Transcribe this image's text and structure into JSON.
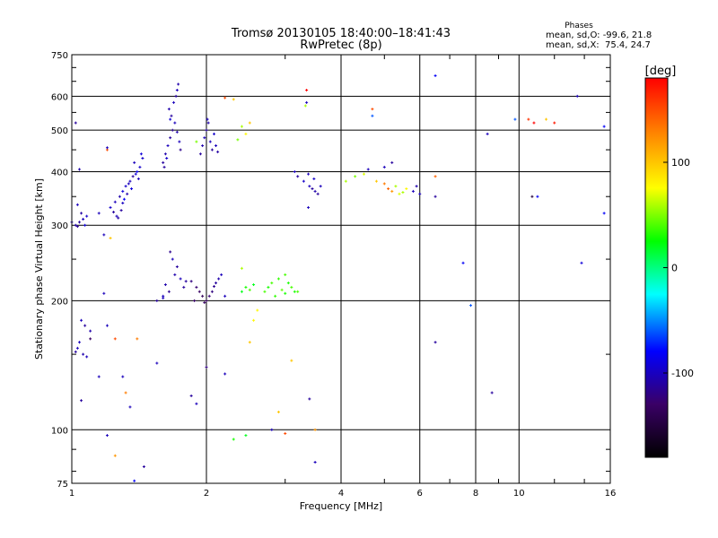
{
  "chart_data": {
    "type": "scatter",
    "title": "Tromsø 20130105 18:40:00–18:41:43",
    "subtitle": "RwPretec (8p)",
    "xlabel": "Frequency [MHz]",
    "ylabel": "Stationary phase Virtual Height [km]",
    "x_scale": "log",
    "y_scale": "log",
    "xlim": [
      1,
      16
    ],
    "ylim": [
      75,
      750
    ],
    "x_ticks": [
      1,
      2,
      4,
      6,
      8,
      10,
      16
    ],
    "x_tick_labels": [
      "1",
      "2",
      "4",
      "6",
      "8",
      "10",
      "16"
    ],
    "y_ticks": [
      75,
      100,
      200,
      300,
      400,
      500,
      600,
      750
    ],
    "y_tick_labels": [
      "75",
      "100",
      "200",
      "300",
      "400",
      "500",
      "600",
      "750"
    ],
    "grid": true,
    "stats": {
      "heading": "Phases",
      "line_o": "mean, sd,O: -99.6, 21.8",
      "line_x": "mean, sd,X:  75.4, 24.7"
    },
    "colorbar": {
      "label": "[deg]",
      "min": -180,
      "max": 180,
      "ticks": [
        100,
        0,
        -100
      ],
      "tick_labels": [
        "100",
        "0",
        "-100"
      ],
      "colormap": [
        "#000000",
        "#3a0066",
        "#0000ff",
        "#00ffff",
        "#00ff00",
        "#ffff00",
        "#ff8000",
        "#ff0000"
      ]
    },
    "points_description_fields": [
      "frequency_mhz",
      "height_km",
      "phase_deg"
    ],
    "points": [
      [
        1.02,
        300,
        -105
      ],
      [
        1.04,
        305,
        -110
      ],
      [
        1.06,
        310,
        -100
      ],
      [
        1.08,
        315,
        -95
      ],
      [
        1.05,
        320,
        -108
      ],
      [
        1.03,
        298,
        -112
      ],
      [
        1.0,
        305,
        -100
      ],
      [
        1.07,
        300,
        -90
      ],
      [
        1.02,
        520,
        -110
      ],
      [
        1.04,
        405,
        -105
      ],
      [
        1.03,
        335,
        -100
      ],
      [
        1.22,
        330,
        -95
      ],
      [
        1.25,
        340,
        -100
      ],
      [
        1.28,
        350,
        -105
      ],
      [
        1.3,
        360,
        -90
      ],
      [
        1.32,
        370,
        -95
      ],
      [
        1.35,
        380,
        -100
      ],
      [
        1.37,
        390,
        -110
      ],
      [
        1.4,
        400,
        -85
      ],
      [
        1.42,
        410,
        -95
      ],
      [
        1.38,
        420,
        -100
      ],
      [
        1.33,
        355,
        -105
      ],
      [
        1.29,
        325,
        -110
      ],
      [
        1.26,
        315,
        -100
      ],
      [
        1.31,
        345,
        -80
      ],
      [
        1.36,
        365,
        -90
      ],
      [
        1.41,
        385,
        -100
      ],
      [
        1.44,
        430,
        -95
      ],
      [
        1.27,
        312,
        -108
      ],
      [
        1.34,
        375,
        -100
      ],
      [
        1.39,
        395,
        -92
      ],
      [
        1.24,
        322,
        -110
      ],
      [
        1.3,
        338,
        -98
      ],
      [
        1.43,
        440,
        -90
      ],
      [
        1.2,
        450,
        150
      ],
      [
        1.2,
        455,
        -100
      ],
      [
        1.15,
        320,
        -100
      ],
      [
        1.18,
        285,
        -100
      ],
      [
        1.22,
        280,
        100
      ],
      [
        1.6,
        420,
        -110
      ],
      [
        1.62,
        440,
        -105
      ],
      [
        1.64,
        460,
        -100
      ],
      [
        1.66,
        480,
        -110
      ],
      [
        1.68,
        500,
        -115
      ],
      [
        1.7,
        520,
        -100
      ],
      [
        1.67,
        540,
        -110
      ],
      [
        1.65,
        560,
        -105
      ],
      [
        1.69,
        580,
        -100
      ],
      [
        1.71,
        600,
        -110
      ],
      [
        1.72,
        620,
        -100
      ],
      [
        1.73,
        640,
        -105
      ],
      [
        1.63,
        430,
        -95
      ],
      [
        1.61,
        410,
        -110
      ],
      [
        1.74,
        470,
        -100
      ],
      [
        1.75,
        450,
        -115
      ],
      [
        1.66,
        530,
        -90
      ],
      [
        1.72,
        495,
        -105
      ],
      [
        1.94,
        440,
        -110
      ],
      [
        1.96,
        460,
        -105
      ],
      [
        1.98,
        480,
        -100
      ],
      [
        2.0,
        500,
        -110
      ],
      [
        2.02,
        520,
        -105
      ],
      [
        2.04,
        470,
        -100
      ],
      [
        2.06,
        450,
        -110
      ],
      [
        2.08,
        490,
        -95
      ],
      [
        2.1,
        460,
        -100
      ],
      [
        2.12,
        445,
        -108
      ],
      [
        2.01,
        530,
        -100
      ],
      [
        1.9,
        470,
        50
      ],
      [
        1.55,
        200,
        -110
      ],
      [
        1.6,
        205,
        -100
      ],
      [
        1.65,
        210,
        -115
      ],
      [
        1.7,
        230,
        -105
      ],
      [
        1.72,
        240,
        -110
      ],
      [
        1.68,
        250,
        -100
      ],
      [
        1.66,
        260,
        -115
      ],
      [
        1.75,
        225,
        -100
      ],
      [
        1.8,
        222,
        -110
      ],
      [
        1.85,
        222,
        -120
      ],
      [
        1.9,
        215,
        -125
      ],
      [
        1.93,
        210,
        -130
      ],
      [
        1.96,
        205,
        -135
      ],
      [
        2.0,
        200,
        -130
      ],
      [
        2.03,
        205,
        -125
      ],
      [
        2.06,
        210,
        -120
      ],
      [
        2.1,
        220,
        -110
      ],
      [
        2.13,
        225,
        -105
      ],
      [
        2.16,
        230,
        -100
      ],
      [
        1.88,
        200,
        -128
      ],
      [
        1.98,
        198,
        -132
      ],
      [
        2.08,
        216,
        -115
      ],
      [
        1.78,
        215,
        -110
      ],
      [
        1.62,
        218,
        -105
      ],
      [
        2.4,
        210,
        20
      ],
      [
        2.45,
        215,
        30
      ],
      [
        2.5,
        212,
        40
      ],
      [
        2.55,
        218,
        20
      ],
      [
        2.4,
        238,
        60
      ],
      [
        2.7,
        210,
        40
      ],
      [
        2.75,
        215,
        30
      ],
      [
        2.8,
        220,
        40
      ],
      [
        2.9,
        225,
        35
      ],
      [
        3.0,
        230,
        40
      ],
      [
        3.05,
        220,
        30
      ],
      [
        3.1,
        215,
        40
      ],
      [
        3.15,
        210,
        30
      ],
      [
        2.95,
        212,
        45
      ],
      [
        3.2,
        210,
        40
      ],
      [
        2.85,
        205,
        35
      ],
      [
        3.0,
        208,
        30
      ],
      [
        2.4,
        510,
        60
      ],
      [
        2.45,
        490,
        80
      ],
      [
        2.35,
        475,
        50
      ],
      [
        2.3,
        590,
        100
      ],
      [
        2.5,
        520,
        100
      ],
      [
        2.2,
        595,
        150
      ],
      [
        3.15,
        400,
        -100
      ],
      [
        3.2,
        390,
        -110
      ],
      [
        3.3,
        380,
        -95
      ],
      [
        3.4,
        370,
        -100
      ],
      [
        3.45,
        365,
        -110
      ],
      [
        3.5,
        360,
        -105
      ],
      [
        3.55,
        355,
        -110
      ],
      [
        3.6,
        370,
        -100
      ],
      [
        3.48,
        385,
        -95
      ],
      [
        3.38,
        395,
        -100
      ],
      [
        4.1,
        380,
        60
      ],
      [
        4.3,
        390,
        50
      ],
      [
        4.5,
        395,
        70
      ],
      [
        4.8,
        380,
        100
      ],
      [
        5.0,
        375,
        130
      ],
      [
        5.1,
        365,
        140
      ],
      [
        5.2,
        360,
        120
      ],
      [
        5.4,
        355,
        70
      ],
      [
        5.5,
        358,
        60
      ],
      [
        5.6,
        365,
        80
      ],
      [
        5.3,
        370,
        60
      ],
      [
        4.6,
        405,
        -100
      ],
      [
        5.0,
        410,
        -100
      ],
      [
        5.2,
        420,
        -110
      ],
      [
        5.8,
        360,
        -100
      ],
      [
        5.9,
        370,
        -105
      ],
      [
        6.0,
        355,
        -100
      ],
      [
        4.7,
        560,
        150
      ],
      [
        4.7,
        540,
        -60
      ],
      [
        3.35,
        620,
        180
      ],
      [
        3.35,
        580,
        -100
      ],
      [
        3.33,
        570,
        60
      ],
      [
        6.5,
        670,
        -80
      ],
      [
        6.5,
        390,
        140
      ],
      [
        6.5,
        350,
        -110
      ],
      [
        6.5,
        160,
        -110
      ],
      [
        7.5,
        245,
        -80
      ],
      [
        7.8,
        195,
        -60
      ],
      [
        8.5,
        490,
        -100
      ],
      [
        8.7,
        122,
        -110
      ],
      [
        9.8,
        530,
        -60
      ],
      [
        10.5,
        530,
        160
      ],
      [
        10.8,
        520,
        180
      ],
      [
        11.5,
        530,
        100
      ],
      [
        12.0,
        520,
        170
      ],
      [
        10.7,
        350,
        -150
      ],
      [
        11.0,
        350,
        -80
      ],
      [
        13.5,
        600,
        -100
      ],
      [
        13.8,
        245,
        -90
      ],
      [
        15.5,
        320,
        -80
      ],
      [
        15.5,
        510,
        -80
      ],
      [
        2.2,
        205,
        -100
      ],
      [
        1.05,
        180,
        -100
      ],
      [
        1.07,
        175,
        -110
      ],
      [
        1.04,
        160,
        -100
      ],
      [
        1.06,
        150,
        -105
      ],
      [
        1.08,
        148,
        -100
      ],
      [
        1.02,
        152,
        -110
      ],
      [
        1.1,
        170,
        -105
      ],
      [
        1.03,
        155,
        -100
      ],
      [
        1.2,
        175,
        -100
      ],
      [
        1.25,
        163,
        150
      ],
      [
        1.3,
        133,
        -100
      ],
      [
        1.32,
        122,
        130
      ],
      [
        1.35,
        113,
        -100
      ],
      [
        1.4,
        163,
        130
      ],
      [
        1.05,
        117,
        -110
      ],
      [
        1.1,
        163,
        -130
      ],
      [
        1.15,
        133,
        -100
      ],
      [
        1.18,
        208,
        -100
      ],
      [
        1.2,
        97,
        -100
      ],
      [
        1.25,
        87,
        120
      ],
      [
        1.38,
        76,
        -80
      ],
      [
        1.45,
        82,
        -110
      ],
      [
        1.55,
        143,
        -100
      ],
      [
        1.6,
        203,
        -100
      ],
      [
        1.85,
        120,
        -110
      ],
      [
        1.9,
        115,
        -100
      ],
      [
        2.0,
        140,
        -120
      ],
      [
        2.2,
        135,
        -100
      ],
      [
        2.3,
        95,
        30
      ],
      [
        2.45,
        97,
        20
      ],
      [
        2.5,
        160,
        100
      ],
      [
        2.55,
        180,
        80
      ],
      [
        2.8,
        100,
        -100
      ],
      [
        2.9,
        110,
        100
      ],
      [
        3.0,
        98,
        150
      ],
      [
        3.1,
        145,
        100
      ],
      [
        3.4,
        118,
        -110
      ],
      [
        3.5,
        100,
        120
      ],
      [
        3.5,
        84,
        -100
      ],
      [
        2.6,
        190,
        80
      ],
      [
        3.38,
        330,
        -100
      ]
    ]
  }
}
